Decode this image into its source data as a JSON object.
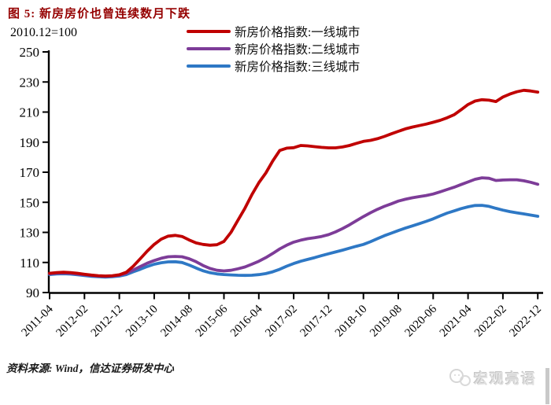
{
  "header": {
    "title": "图 5:  新房房价也曾连续数月下跌"
  },
  "chart_data": {
    "type": "line",
    "title": "图 5: 新房房价也曾连续数月下跌",
    "unit_note": "2010.12=100",
    "x_start": "2011-04",
    "x_end": "2022-12",
    "x_step_months": 2,
    "x_tick_labels": [
      "2011-04",
      "2012-02",
      "2012-12",
      "2013-10",
      "2014-08",
      "2015-06",
      "2016-04",
      "2017-02",
      "2017-12",
      "2018-10",
      "2019-08",
      "2020-06",
      "2021-04",
      "2022-02",
      "2022-12"
    ],
    "y_ticks": [
      90,
      110,
      130,
      150,
      170,
      190,
      210,
      230,
      250
    ],
    "ylim": [
      90,
      250
    ],
    "grid": false,
    "legend_position": "top",
    "series": [
      {
        "name": "新房价格指数:一线城市",
        "color": "#c00000",
        "values": [
          102.8,
          103.3,
          103.5,
          103.3,
          102.8,
          102.2,
          101.6,
          101.2,
          101.0,
          101.2,
          101.8,
          103.5,
          107.5,
          112.5,
          117.5,
          122.0,
          125.5,
          127.5,
          128.0,
          127.3,
          125.0,
          123.0,
          122.0,
          121.5,
          121.8,
          124.0,
          130.0,
          138.0,
          146.0,
          155.0,
          163.0,
          169.5,
          177.5,
          184.5,
          186.0,
          186.3,
          187.8,
          187.5,
          187.0,
          186.5,
          186.2,
          186.2,
          186.8,
          187.8,
          189.2,
          190.5,
          191.2,
          192.3,
          193.8,
          195.5,
          197.2,
          198.8,
          200.0,
          201.0,
          202.0,
          203.2,
          204.5,
          206.2,
          208.2,
          211.5,
          215.0,
          217.3,
          218.2,
          217.9,
          217.0,
          220.0,
          222.0,
          223.5,
          224.5,
          224.0,
          223.3
        ]
      },
      {
        "name": "新房价格指数:二线城市",
        "color": "#7d3c98",
        "values": [
          102.5,
          102.9,
          103.0,
          102.8,
          102.3,
          101.8,
          101.3,
          101.0,
          100.8,
          101.0,
          101.5,
          102.8,
          105.0,
          107.3,
          109.5,
          111.3,
          112.8,
          113.8,
          114.0,
          113.8,
          112.5,
          110.5,
          108.0,
          106.0,
          104.8,
          104.4,
          104.8,
          105.8,
          107.0,
          108.8,
          110.8,
          113.2,
          116.0,
          119.0,
          121.5,
          123.5,
          124.8,
          125.8,
          126.5,
          127.3,
          128.5,
          130.3,
          132.5,
          135.0,
          137.8,
          140.5,
          143.0,
          145.3,
          147.3,
          149.0,
          150.8,
          152.0,
          153.0,
          153.8,
          154.5,
          155.5,
          157.0,
          158.5,
          160.0,
          161.8,
          163.5,
          165.3,
          166.3,
          166.0,
          164.5,
          164.8,
          165.0,
          165.0,
          164.3,
          163.3,
          162.0
        ]
      },
      {
        "name": "新房价格指数:三线城市",
        "color": "#2e78c5",
        "values": [
          102.0,
          102.4,
          102.5,
          102.3,
          101.8,
          101.3,
          100.8,
          100.5,
          100.3,
          100.5,
          101.0,
          102.0,
          103.8,
          105.5,
          107.3,
          108.8,
          109.8,
          110.4,
          110.5,
          110.0,
          108.3,
          106.3,
          104.5,
          103.2,
          102.4,
          102.0,
          101.7,
          101.5,
          101.4,
          101.5,
          101.9,
          102.6,
          103.8,
          105.5,
          107.5,
          109.3,
          110.8,
          112.0,
          113.2,
          114.5,
          115.8,
          117.0,
          118.2,
          119.5,
          120.8,
          122.0,
          123.8,
          125.8,
          127.8,
          129.5,
          131.2,
          132.8,
          134.3,
          135.8,
          137.3,
          139.0,
          141.0,
          142.8,
          144.3,
          145.8,
          147.0,
          147.9,
          148.0,
          147.3,
          146.0,
          144.8,
          143.8,
          143.0,
          142.3,
          141.5,
          140.7
        ]
      }
    ]
  },
  "footer": {
    "source": "资料来源: Wind，信达证券研发中心"
  },
  "watermark": {
    "label": "宏观亮语"
  }
}
